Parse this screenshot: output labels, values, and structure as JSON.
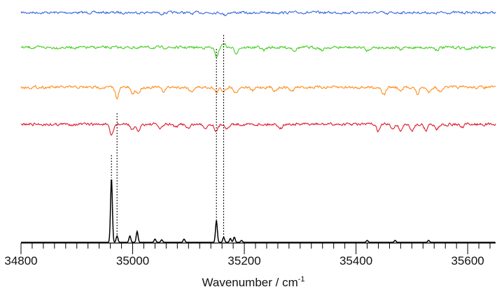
{
  "chart_data": {
    "type": "line",
    "title": "",
    "xlabel": "Wavenumber / cm",
    "xlabel_superscript": "-1",
    "ylabel": "",
    "xlim": [
      34800,
      35650
    ],
    "x_ticks": [
      34800,
      35000,
      35200,
      35400,
      35600
    ],
    "x_minor_step": 20,
    "grid": false,
    "legend": "none",
    "y_axis_visible": false,
    "series": [
      {
        "color": "#3366dd",
        "baseline": 0.97,
        "noise": 0.045,
        "lines": [
          [
            35165,
            0.06
          ],
          [
            35050,
            0.03
          ],
          [
            35105,
            0.03
          ],
          [
            35210,
            0.03
          ],
          [
            35455,
            0.04
          ],
          [
            35540,
            0.03
          ]
        ]
      },
      {
        "color": "#44cc22",
        "baseline": 0.84,
        "noise": 0.05,
        "lines": [
          [
            35150,
            0.22
          ],
          [
            35163,
            -0.1
          ],
          [
            35185,
            0.13
          ],
          [
            35235,
            0.07
          ],
          [
            35290,
            0.07
          ],
          [
            35340,
            0.07
          ],
          [
            35420,
            0.08
          ],
          [
            35480,
            0.06
          ],
          [
            35545,
            0.05
          ],
          [
            35600,
            0.06
          ]
        ]
      },
      {
        "color": "#ff8c1a",
        "baseline": 0.71,
        "noise": 0.05,
        "lines": [
          [
            34972,
            0.24
          ],
          [
            35000,
            0.16
          ],
          [
            35010,
            0.14
          ],
          [
            35055,
            0.1
          ],
          [
            35105,
            0.11
          ],
          [
            35150,
            0.12
          ],
          [
            35162,
            0.09
          ],
          [
            35185,
            0.13
          ],
          [
            35215,
            0.09
          ],
          [
            35255,
            0.08
          ],
          [
            35285,
            0.1
          ],
          [
            35450,
            0.18
          ],
          [
            35480,
            0.1
          ],
          [
            35510,
            0.16
          ],
          [
            35530,
            0.12
          ],
          [
            35550,
            0.1
          ]
        ]
      },
      {
        "color": "#e0182a",
        "baseline": 0.58,
        "noise": 0.05,
        "lines": [
          [
            34962,
            0.27
          ],
          [
            35000,
            0.14
          ],
          [
            35010,
            0.16
          ],
          [
            35050,
            0.11
          ],
          [
            35078,
            0.08
          ],
          [
            35100,
            0.1
          ],
          [
            35130,
            0.08
          ],
          [
            35150,
            0.16
          ],
          [
            35170,
            0.1
          ],
          [
            35265,
            0.09
          ],
          [
            35440,
            0.16
          ],
          [
            35465,
            0.1
          ],
          [
            35480,
            0.15
          ],
          [
            35500,
            0.17
          ],
          [
            35525,
            0.14
          ],
          [
            35545,
            0.12
          ],
          [
            35590,
            0.08
          ]
        ]
      },
      {
        "color": "#000000",
        "baseline": 0.0,
        "noise": 0.0,
        "lines": [
          [
            34962,
            -1.0
          ],
          [
            34972,
            -0.1
          ],
          [
            34995,
            -0.1
          ],
          [
            35008,
            -0.17
          ],
          [
            35040,
            -0.05
          ],
          [
            35052,
            -0.04
          ],
          [
            35092,
            -0.05
          ],
          [
            35150,
            -0.34
          ],
          [
            35163,
            -0.08
          ],
          [
            35175,
            -0.06
          ],
          [
            35182,
            -0.08
          ],
          [
            35195,
            -0.03
          ],
          [
            35420,
            -0.03
          ],
          [
            35470,
            -0.03
          ],
          [
            35530,
            -0.03
          ]
        ]
      }
    ],
    "markers": [
      34962,
      34972,
      35150,
      35163
    ]
  }
}
